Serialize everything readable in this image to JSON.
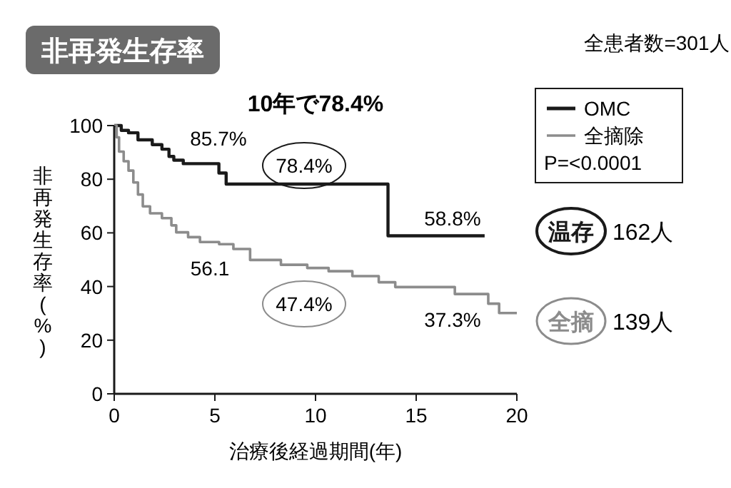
{
  "chart_data": {
    "type": "step",
    "title": "非再発生存率",
    "xlabel": "治療後経過期間(年)",
    "ylabel": "非再発生存率(%)",
    "xlim": [
      0,
      20
    ],
    "xticks": [
      0,
      5,
      10,
      15,
      20
    ],
    "ylim": [
      0,
      100
    ],
    "yticks": [
      0,
      20,
      40,
      60,
      80,
      100
    ],
    "grid": false,
    "legend": "right",
    "series": [
      {
        "name": "OMC",
        "color": "#1a1a1a",
        "x": [
          0,
          0.35,
          0.71,
          1.18,
          1.89,
          2.37,
          2.72,
          2.96,
          3.43,
          5.2,
          5.56,
          13.6,
          18.4
        ],
        "values": [
          100,
          98.2,
          97.3,
          94.7,
          92.9,
          91.2,
          88.5,
          87.1,
          85.8,
          82.3,
          78.2,
          58.9,
          58.9
        ]
      },
      {
        "name": "全摘除",
        "color": "#8c8c8c",
        "x": [
          0,
          0.12,
          0.24,
          0.47,
          0.71,
          0.95,
          1.18,
          1.42,
          1.78,
          2.37,
          2.84,
          3.08,
          3.67,
          4.26,
          5.21,
          5.92,
          6.75,
          8.28,
          9.59,
          10.65,
          11.83,
          13.14,
          13.96,
          16.92,
          18.58,
          19.12,
          20
        ],
        "values": [
          100,
          95.6,
          90.3,
          86.7,
          83.2,
          78.8,
          74.3,
          69.9,
          67.3,
          65.5,
          62.8,
          60.2,
          58.4,
          56.6,
          55.8,
          54,
          49.9,
          48.1,
          46.9,
          45.7,
          43.9,
          41.6,
          39.8,
          37.2,
          33.6,
          30.1,
          30.1
        ]
      }
    ],
    "annotations": [
      "10年で78.4%",
      "85.7%",
      "78.4%",
      "58.8%",
      "56.1",
      "47.4%",
      "37.3%",
      "全患者数=301人",
      "P=<0.0001",
      "温存",
      "162人",
      "全摘",
      "139人"
    ]
  }
}
